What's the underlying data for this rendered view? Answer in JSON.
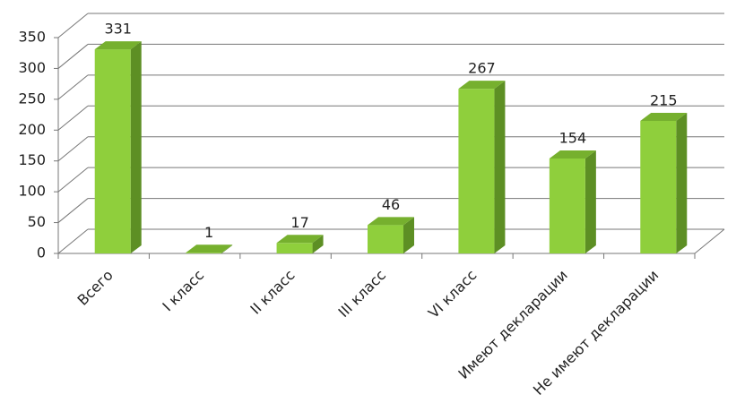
{
  "chart_data": {
    "type": "bar3d",
    "categories": [
      "Всего",
      "I класс",
      "II класс",
      "III класс",
      "VI класс",
      "Имеют декларации",
      "Не имеют декларации"
    ],
    "values": [
      331,
      1,
      17,
      46,
      267,
      154,
      215
    ],
    "color": "#8fcf3c",
    "ylim": [
      0,
      350
    ],
    "yticks": [
      0,
      50,
      100,
      150,
      200,
      250,
      300,
      350
    ],
    "grid": true
  }
}
